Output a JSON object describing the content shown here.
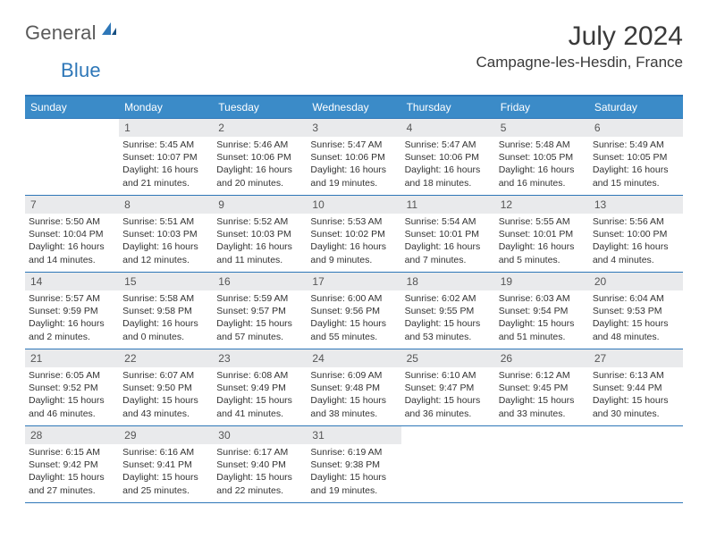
{
  "logo": {
    "general": "General",
    "blue": "Blue"
  },
  "title": "July 2024",
  "location": "Campagne-les-Hesdin, France",
  "colors": {
    "header_bg": "#3b8bc8",
    "header_border": "#2e77b8",
    "daynum_bg": "#e9eaec",
    "text": "#333333",
    "title_text": "#3a3a3a",
    "logo_gray": "#5a5a5a",
    "logo_blue": "#2e77b8",
    "background": "#ffffff"
  },
  "typography": {
    "title_fontsize": 30,
    "location_fontsize": 17,
    "header_fontsize": 12,
    "daynum_fontsize": 12,
    "body_fontsize": 10.5
  },
  "day_headers": [
    "Sunday",
    "Monday",
    "Tuesday",
    "Wednesday",
    "Thursday",
    "Friday",
    "Saturday"
  ],
  "weeks": [
    [
      {
        "num": "",
        "sunrise": "",
        "sunset": "",
        "daylight1": "",
        "daylight2": ""
      },
      {
        "num": "1",
        "sunrise": "Sunrise: 5:45 AM",
        "sunset": "Sunset: 10:07 PM",
        "daylight1": "Daylight: 16 hours",
        "daylight2": "and 21 minutes."
      },
      {
        "num": "2",
        "sunrise": "Sunrise: 5:46 AM",
        "sunset": "Sunset: 10:06 PM",
        "daylight1": "Daylight: 16 hours",
        "daylight2": "and 20 minutes."
      },
      {
        "num": "3",
        "sunrise": "Sunrise: 5:47 AM",
        "sunset": "Sunset: 10:06 PM",
        "daylight1": "Daylight: 16 hours",
        "daylight2": "and 19 minutes."
      },
      {
        "num": "4",
        "sunrise": "Sunrise: 5:47 AM",
        "sunset": "Sunset: 10:06 PM",
        "daylight1": "Daylight: 16 hours",
        "daylight2": "and 18 minutes."
      },
      {
        "num": "5",
        "sunrise": "Sunrise: 5:48 AM",
        "sunset": "Sunset: 10:05 PM",
        "daylight1": "Daylight: 16 hours",
        "daylight2": "and 16 minutes."
      },
      {
        "num": "6",
        "sunrise": "Sunrise: 5:49 AM",
        "sunset": "Sunset: 10:05 PM",
        "daylight1": "Daylight: 16 hours",
        "daylight2": "and 15 minutes."
      }
    ],
    [
      {
        "num": "7",
        "sunrise": "Sunrise: 5:50 AM",
        "sunset": "Sunset: 10:04 PM",
        "daylight1": "Daylight: 16 hours",
        "daylight2": "and 14 minutes."
      },
      {
        "num": "8",
        "sunrise": "Sunrise: 5:51 AM",
        "sunset": "Sunset: 10:03 PM",
        "daylight1": "Daylight: 16 hours",
        "daylight2": "and 12 minutes."
      },
      {
        "num": "9",
        "sunrise": "Sunrise: 5:52 AM",
        "sunset": "Sunset: 10:03 PM",
        "daylight1": "Daylight: 16 hours",
        "daylight2": "and 11 minutes."
      },
      {
        "num": "10",
        "sunrise": "Sunrise: 5:53 AM",
        "sunset": "Sunset: 10:02 PM",
        "daylight1": "Daylight: 16 hours",
        "daylight2": "and 9 minutes."
      },
      {
        "num": "11",
        "sunrise": "Sunrise: 5:54 AM",
        "sunset": "Sunset: 10:01 PM",
        "daylight1": "Daylight: 16 hours",
        "daylight2": "and 7 minutes."
      },
      {
        "num": "12",
        "sunrise": "Sunrise: 5:55 AM",
        "sunset": "Sunset: 10:01 PM",
        "daylight1": "Daylight: 16 hours",
        "daylight2": "and 5 minutes."
      },
      {
        "num": "13",
        "sunrise": "Sunrise: 5:56 AM",
        "sunset": "Sunset: 10:00 PM",
        "daylight1": "Daylight: 16 hours",
        "daylight2": "and 4 minutes."
      }
    ],
    [
      {
        "num": "14",
        "sunrise": "Sunrise: 5:57 AM",
        "sunset": "Sunset: 9:59 PM",
        "daylight1": "Daylight: 16 hours",
        "daylight2": "and 2 minutes."
      },
      {
        "num": "15",
        "sunrise": "Sunrise: 5:58 AM",
        "sunset": "Sunset: 9:58 PM",
        "daylight1": "Daylight: 16 hours",
        "daylight2": "and 0 minutes."
      },
      {
        "num": "16",
        "sunrise": "Sunrise: 5:59 AM",
        "sunset": "Sunset: 9:57 PM",
        "daylight1": "Daylight: 15 hours",
        "daylight2": "and 57 minutes."
      },
      {
        "num": "17",
        "sunrise": "Sunrise: 6:00 AM",
        "sunset": "Sunset: 9:56 PM",
        "daylight1": "Daylight: 15 hours",
        "daylight2": "and 55 minutes."
      },
      {
        "num": "18",
        "sunrise": "Sunrise: 6:02 AM",
        "sunset": "Sunset: 9:55 PM",
        "daylight1": "Daylight: 15 hours",
        "daylight2": "and 53 minutes."
      },
      {
        "num": "19",
        "sunrise": "Sunrise: 6:03 AM",
        "sunset": "Sunset: 9:54 PM",
        "daylight1": "Daylight: 15 hours",
        "daylight2": "and 51 minutes."
      },
      {
        "num": "20",
        "sunrise": "Sunrise: 6:04 AM",
        "sunset": "Sunset: 9:53 PM",
        "daylight1": "Daylight: 15 hours",
        "daylight2": "and 48 minutes."
      }
    ],
    [
      {
        "num": "21",
        "sunrise": "Sunrise: 6:05 AM",
        "sunset": "Sunset: 9:52 PM",
        "daylight1": "Daylight: 15 hours",
        "daylight2": "and 46 minutes."
      },
      {
        "num": "22",
        "sunrise": "Sunrise: 6:07 AM",
        "sunset": "Sunset: 9:50 PM",
        "daylight1": "Daylight: 15 hours",
        "daylight2": "and 43 minutes."
      },
      {
        "num": "23",
        "sunrise": "Sunrise: 6:08 AM",
        "sunset": "Sunset: 9:49 PM",
        "daylight1": "Daylight: 15 hours",
        "daylight2": "and 41 minutes."
      },
      {
        "num": "24",
        "sunrise": "Sunrise: 6:09 AM",
        "sunset": "Sunset: 9:48 PM",
        "daylight1": "Daylight: 15 hours",
        "daylight2": "and 38 minutes."
      },
      {
        "num": "25",
        "sunrise": "Sunrise: 6:10 AM",
        "sunset": "Sunset: 9:47 PM",
        "daylight1": "Daylight: 15 hours",
        "daylight2": "and 36 minutes."
      },
      {
        "num": "26",
        "sunrise": "Sunrise: 6:12 AM",
        "sunset": "Sunset: 9:45 PM",
        "daylight1": "Daylight: 15 hours",
        "daylight2": "and 33 minutes."
      },
      {
        "num": "27",
        "sunrise": "Sunrise: 6:13 AM",
        "sunset": "Sunset: 9:44 PM",
        "daylight1": "Daylight: 15 hours",
        "daylight2": "and 30 minutes."
      }
    ],
    [
      {
        "num": "28",
        "sunrise": "Sunrise: 6:15 AM",
        "sunset": "Sunset: 9:42 PM",
        "daylight1": "Daylight: 15 hours",
        "daylight2": "and 27 minutes."
      },
      {
        "num": "29",
        "sunrise": "Sunrise: 6:16 AM",
        "sunset": "Sunset: 9:41 PM",
        "daylight1": "Daylight: 15 hours",
        "daylight2": "and 25 minutes."
      },
      {
        "num": "30",
        "sunrise": "Sunrise: 6:17 AM",
        "sunset": "Sunset: 9:40 PM",
        "daylight1": "Daylight: 15 hours",
        "daylight2": "and 22 minutes."
      },
      {
        "num": "31",
        "sunrise": "Sunrise: 6:19 AM",
        "sunset": "Sunset: 9:38 PM",
        "daylight1": "Daylight: 15 hours",
        "daylight2": "and 19 minutes."
      },
      {
        "num": "",
        "sunrise": "",
        "sunset": "",
        "daylight1": "",
        "daylight2": ""
      },
      {
        "num": "",
        "sunrise": "",
        "sunset": "",
        "daylight1": "",
        "daylight2": ""
      },
      {
        "num": "",
        "sunrise": "",
        "sunset": "",
        "daylight1": "",
        "daylight2": ""
      }
    ]
  ]
}
